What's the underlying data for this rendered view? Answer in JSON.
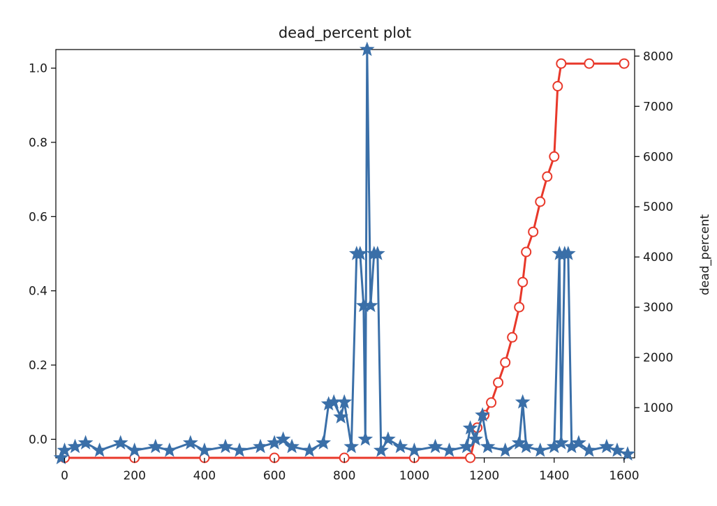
{
  "chart_data": {
    "type": "line",
    "title": "dead_percent plot",
    "xlabel": "",
    "ylabel": "",
    "ylabel_right": "dead_percent",
    "xlim": [
      -25,
      1630
    ],
    "ylim": [
      -0.05,
      1.05
    ],
    "ylim_right": [
      0,
      8130
    ],
    "grid": false,
    "x_ticks": [
      0,
      200,
      400,
      600,
      800,
      1000,
      1200,
      1400,
      1600
    ],
    "y_ticks": [
      0.0,
      0.2,
      0.4,
      0.6,
      0.8,
      1.0
    ],
    "y_ticks_right": [
      1000,
      2000,
      3000,
      4000,
      5000,
      6000,
      7000,
      8000
    ],
    "x_tick_labels": [
      "0",
      "200",
      "400",
      "600",
      "800",
      "1000",
      "1200",
      "1400",
      "1600"
    ],
    "y_tick_labels": [
      "0.0",
      "0.2",
      "0.4",
      "0.6",
      "0.8",
      "1.0"
    ],
    "y_tick_labels_right": [
      "1000",
      "2000",
      "3000",
      "4000",
      "5000",
      "6000",
      "7000",
      "8000"
    ],
    "series": [
      {
        "axis": "right",
        "color": "#e8382a",
        "marker": "circle",
        "x": [
          0,
          200,
          400,
          600,
          800,
          1000,
          1160,
          1180,
          1200,
          1220,
          1240,
          1260,
          1280,
          1300,
          1310,
          1320,
          1340,
          1360,
          1380,
          1400,
          1410,
          1420,
          1500,
          1600
        ],
        "values": [
          0,
          0,
          0,
          0,
          0,
          0,
          0,
          600,
          850,
          1100,
          1500,
          1900,
          2400,
          3000,
          3500,
          4100,
          4500,
          5100,
          5600,
          6000,
          7400,
          7850,
          7850,
          7850
        ]
      },
      {
        "axis": "left",
        "color": "#3a6fa8",
        "marker": "star",
        "x": [
          -10,
          0,
          30,
          60,
          100,
          160,
          200,
          260,
          300,
          360,
          400,
          460,
          500,
          560,
          600,
          625,
          650,
          700,
          740,
          755,
          770,
          790,
          800,
          820,
          835,
          845,
          855,
          860,
          865,
          875,
          885,
          895,
          905,
          925,
          960,
          1000,
          1060,
          1100,
          1150,
          1160,
          1175,
          1195,
          1210,
          1260,
          1300,
          1310,
          1320,
          1360,
          1400,
          1415,
          1420,
          1430,
          1440,
          1450,
          1470,
          1500,
          1550,
          1580,
          1610
        ],
        "values": [
          -0.05,
          -0.03,
          -0.02,
          -0.01,
          -0.03,
          -0.01,
          -0.03,
          -0.02,
          -0.03,
          -0.01,
          -0.03,
          -0.02,
          -0.03,
          -0.02,
          -0.01,
          0.0,
          -0.02,
          -0.03,
          -0.01,
          0.095,
          0.1,
          0.06,
          0.1,
          -0.02,
          0.5,
          0.5,
          0.36,
          0.0,
          1.05,
          0.36,
          0.5,
          0.5,
          -0.03,
          0.0,
          -0.02,
          -0.03,
          -0.02,
          -0.03,
          -0.02,
          0.03,
          0.0,
          0.065,
          -0.02,
          -0.03,
          -0.01,
          0.1,
          -0.02,
          -0.03,
          -0.02,
          0.5,
          -0.01,
          0.5,
          0.5,
          -0.02,
          -0.01,
          -0.03,
          -0.02,
          -0.03,
          -0.04
        ]
      }
    ]
  }
}
